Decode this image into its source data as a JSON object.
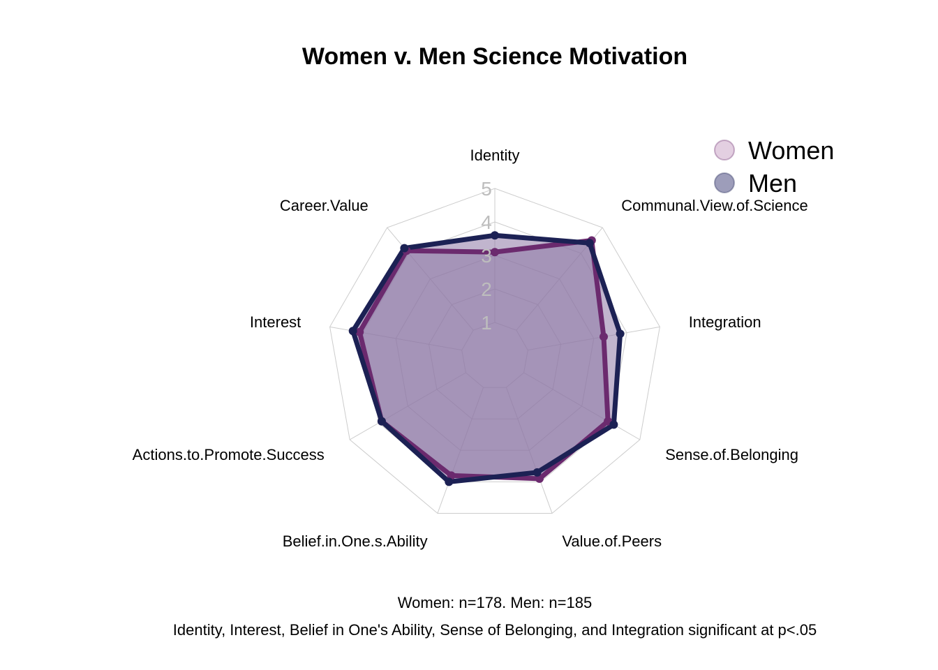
{
  "chart_data": {
    "type": "radar",
    "title": "Women v. Men Science Motivation",
    "axes": [
      "Identity",
      "Communal.View.of.Science",
      "Integration",
      "Sense.of.Belonging",
      "Value.of.Peers",
      "Belief.in.One.s.Ability",
      "Actions.to.Promote.Success",
      "Interest",
      "Career.Value"
    ],
    "rlim": [
      0,
      5
    ],
    "ticks": [
      "1",
      "2",
      "3",
      "4",
      "5"
    ],
    "grid": true,
    "legend_position": "top-right",
    "series": [
      {
        "name": "Women",
        "values": [
          3.1,
          4.5,
          3.3,
          3.9,
          3.9,
          3.8,
          3.9,
          4.1,
          4.1
        ],
        "color": "#6b2a6e",
        "legend_color": "#e3cfe1"
      },
      {
        "name": "Men",
        "values": [
          3.6,
          4.4,
          3.8,
          4.1,
          3.7,
          4.0,
          3.9,
          4.3,
          4.2
        ],
        "color": "#1c2154",
        "legend_color": "#9d9dba"
      }
    ],
    "fill_color": "#8e79a6",
    "caption_lines": [
      "Women: n=178. Men: n=185",
      "Identity, Interest, Belief in One's Ability, Sense of Belonging, and Integration significant at p<.05"
    ]
  }
}
